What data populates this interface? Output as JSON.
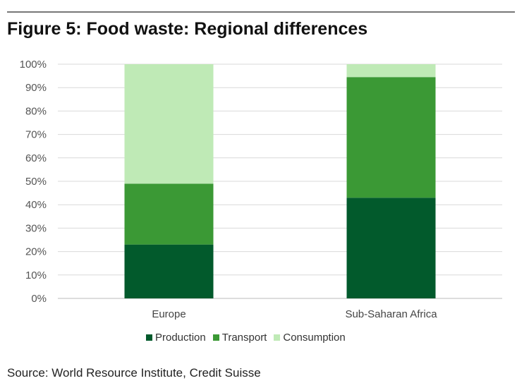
{
  "header": {
    "title": "Figure 5: Food waste: Regional differences"
  },
  "footer": {
    "source": "Source: World Resource Institute, Credit Suisse"
  },
  "colors": {
    "production": "#025a2c",
    "transport": "#3b9935",
    "consumption": "#bfeab6",
    "grid": "#d9d9d9"
  },
  "chart_data": {
    "type": "bar",
    "stacked": true,
    "categories": [
      "Europe",
      "Sub-Saharan Africa"
    ],
    "series": [
      {
        "name": "Production",
        "values": [
          23,
          43
        ]
      },
      {
        "name": "Transport",
        "values": [
          26,
          51.5
        ]
      },
      {
        "name": "Consumption",
        "values": [
          51,
          5.5
        ]
      }
    ],
    "ylim": [
      0,
      100
    ],
    "yticks": [
      "0%",
      "10%",
      "20%",
      "30%",
      "40%",
      "50%",
      "60%",
      "70%",
      "80%",
      "90%",
      "100%"
    ],
    "grid": true,
    "legend": "bottom",
    "title": "",
    "xlabel": "",
    "ylabel": ""
  }
}
